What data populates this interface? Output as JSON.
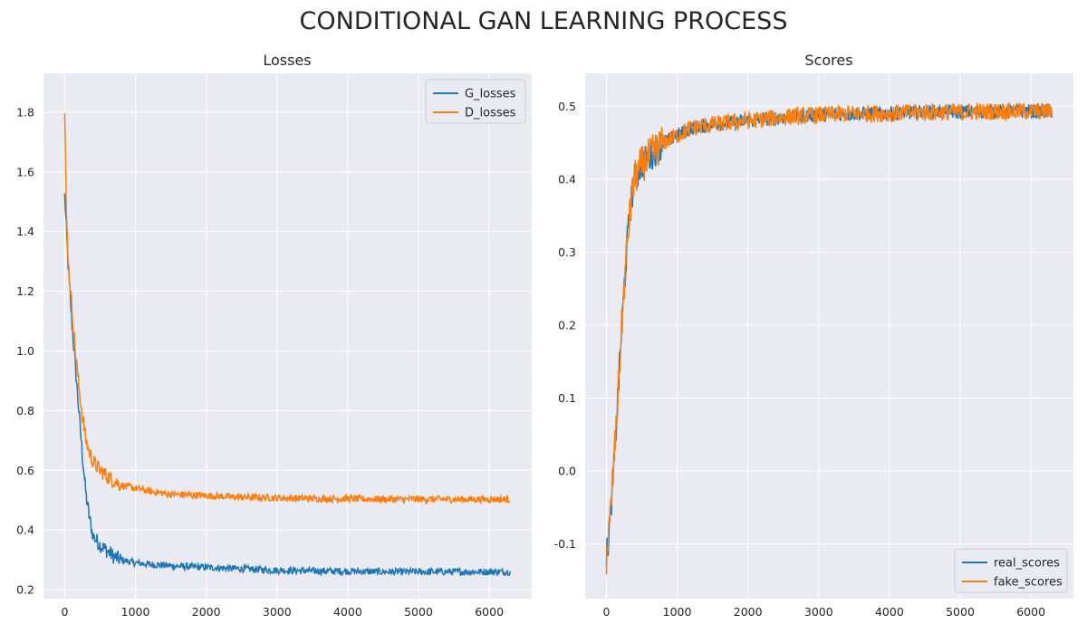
{
  "figure": {
    "title": "CONDITIONAL GAN LEARNING PROCESS"
  },
  "colors": {
    "series1": "#1f77b4",
    "series2": "#ff7f0e",
    "panel_bg": "#eaeaf2",
    "grid": "#ffffff"
  },
  "chart_data": [
    {
      "type": "line",
      "title": "Losses",
      "xlabel": "",
      "ylabel": "",
      "xlim": [
        -300,
        6600
      ],
      "ylim": [
        0.17,
        1.93
      ],
      "xticks": [
        0,
        1000,
        2000,
        3000,
        4000,
        5000,
        6000
      ],
      "yticks": [
        0.2,
        0.4,
        0.6,
        0.8,
        1.0,
        1.2,
        1.4,
        1.6,
        1.8
      ],
      "grid": true,
      "legend": "upper right",
      "series": [
        {
          "name": "G_losses",
          "color": "#1f77b4",
          "x": [
            0,
            25,
            50,
            100,
            150,
            200,
            250,
            300,
            350,
            400,
            500,
            600,
            700,
            800,
            1000,
            1200,
            1500,
            2000,
            2500,
            3000,
            3500,
            4000,
            4500,
            5000,
            5500,
            6000,
            6300
          ],
          "y": [
            1.52,
            1.4,
            1.28,
            1.1,
            0.95,
            0.8,
            0.65,
            0.52,
            0.44,
            0.38,
            0.35,
            0.33,
            0.31,
            0.3,
            0.29,
            0.285,
            0.28,
            0.275,
            0.27,
            0.265,
            0.263,
            0.262,
            0.26,
            0.26,
            0.26,
            0.26,
            0.26
          ],
          "noise": 0.012
        },
        {
          "name": "D_losses",
          "color": "#ff7f0e",
          "x": [
            0,
            10,
            25,
            50,
            100,
            150,
            200,
            250,
            300,
            350,
            400,
            500,
            600,
            700,
            800,
            1000,
            1200,
            1500,
            2000,
            2500,
            3000,
            3500,
            4000,
            4500,
            5000,
            5500,
            6000,
            6300
          ],
          "y": [
            1.8,
            1.65,
            1.45,
            1.3,
            1.15,
            1.0,
            0.88,
            0.78,
            0.7,
            0.66,
            0.63,
            0.6,
            0.58,
            0.565,
            0.55,
            0.54,
            0.53,
            0.52,
            0.515,
            0.51,
            0.508,
            0.505,
            0.505,
            0.503,
            0.503,
            0.503,
            0.503,
            0.503
          ],
          "noise": 0.012
        }
      ]
    },
    {
      "type": "line",
      "title": "Scores",
      "xlabel": "",
      "ylabel": "",
      "xlim": [
        -300,
        6600
      ],
      "ylim": [
        -0.175,
        0.545
      ],
      "xticks": [
        0,
        1000,
        2000,
        3000,
        4000,
        5000,
        6000
      ],
      "yticks": [
        -0.1,
        0.0,
        0.1,
        0.2,
        0.3,
        0.4,
        0.5
      ],
      "grid": true,
      "legend": "lower right",
      "series": [
        {
          "name": "real_scores",
          "color": "#1f77b4",
          "x": [
            0,
            50,
            100,
            150,
            200,
            250,
            300,
            350,
            400,
            500,
            600,
            700,
            800,
            1000,
            1200,
            1500,
            2000,
            2500,
            3000,
            3500,
            4000,
            4500,
            5000,
            5500,
            6000,
            6300
          ],
          "y": [
            -0.12,
            -0.07,
            0.0,
            0.08,
            0.17,
            0.25,
            0.32,
            0.37,
            0.4,
            0.42,
            0.43,
            0.44,
            0.45,
            0.46,
            0.47,
            0.475,
            0.48,
            0.485,
            0.488,
            0.49,
            0.49,
            0.492,
            0.492,
            0.493,
            0.493,
            0.493
          ],
          "noise": 0.01
        },
        {
          "name": "fake_scores",
          "color": "#ff7f0e",
          "x": [
            0,
            50,
            100,
            150,
            200,
            250,
            300,
            350,
            400,
            500,
            600,
            700,
            800,
            1000,
            1200,
            1500,
            2000,
            2500,
            3000,
            3500,
            4000,
            4500,
            5000,
            5500,
            6000,
            6300
          ],
          "y": [
            -0.12,
            -0.07,
            0.0,
            0.08,
            0.17,
            0.25,
            0.32,
            0.37,
            0.4,
            0.42,
            0.43,
            0.44,
            0.45,
            0.46,
            0.47,
            0.475,
            0.48,
            0.485,
            0.488,
            0.49,
            0.49,
            0.492,
            0.492,
            0.493,
            0.493,
            0.493
          ],
          "noise": 0.012
        }
      ]
    }
  ]
}
